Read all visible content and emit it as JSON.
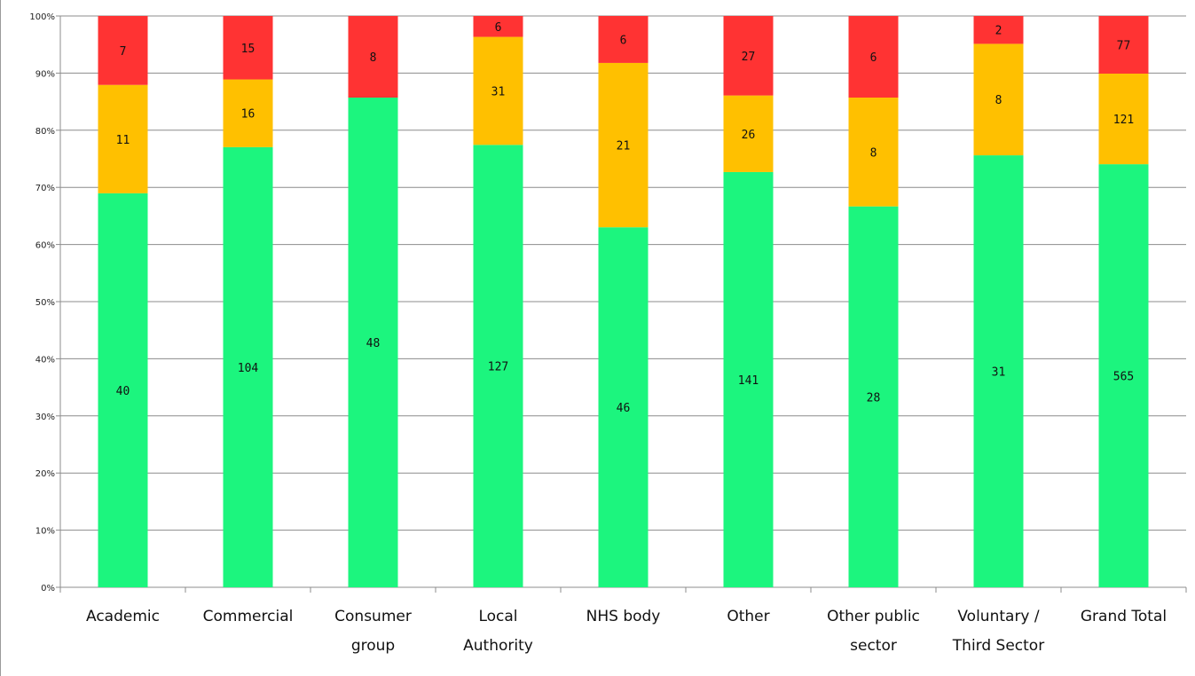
{
  "chart_data": {
    "type": "bar",
    "stacked": true,
    "normalized": true,
    "categories": [
      [
        "Academic"
      ],
      [
        "Commercial"
      ],
      [
        "Consumer",
        "group"
      ],
      [
        "Local",
        "Authority"
      ],
      [
        "NHS body"
      ],
      [
        "Other"
      ],
      [
        "Other public",
        "sector"
      ],
      [
        "Voluntary /",
        "Third Sector"
      ],
      [
        "Grand Total"
      ]
    ],
    "series": [
      {
        "color": "#1cf57e",
        "values": [
          40,
          104,
          48,
          127,
          46,
          141,
          28,
          31,
          565
        ]
      },
      {
        "color": "#ffc000",
        "values": [
          11,
          16,
          0,
          31,
          21,
          26,
          8,
          8,
          121
        ]
      },
      {
        "color": "#ff3333",
        "values": [
          7,
          15,
          8,
          6,
          6,
          27,
          6,
          2,
          77
        ]
      }
    ],
    "y_ticks": [
      "0%",
      "10%",
      "20%",
      "30%",
      "40%",
      "50%",
      "60%",
      "70%",
      "80%",
      "90%",
      "100%"
    ],
    "ylim": [
      0,
      100
    ],
    "grid": true,
    "legend": "none"
  }
}
